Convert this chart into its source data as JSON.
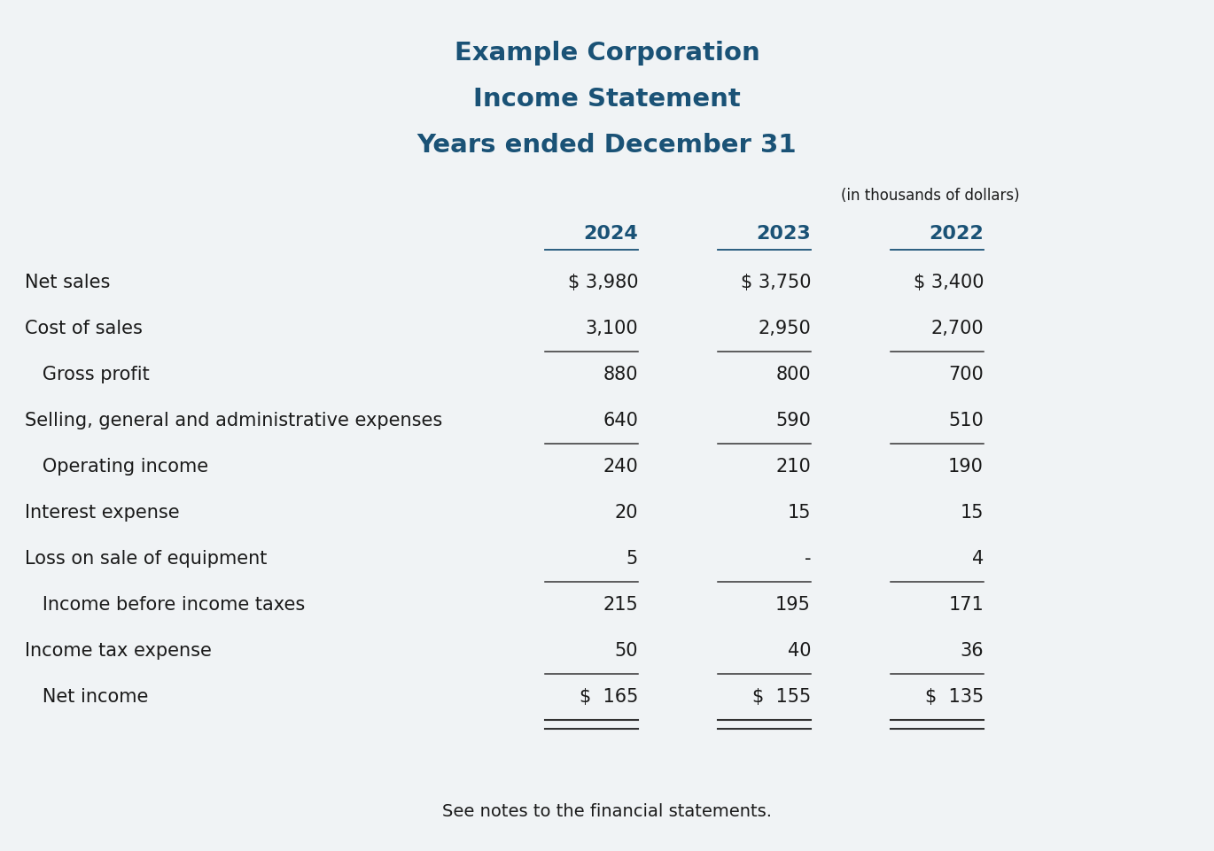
{
  "title_lines": [
    "Example Corporation",
    "Income Statement",
    "Years ended December 31"
  ],
  "title_color": "#1a5276",
  "subtitle_note": "(in thousands of dollars)",
  "years": [
    "2024",
    "2023",
    "2022"
  ],
  "rows": [
    {
      "label": "Net sales",
      "indent": 0,
      "values": [
        "$ 3,980",
        "$ 3,750",
        "$ 3,400"
      ],
      "ul_below": false,
      "dbl_ul": false
    },
    {
      "label": "Cost of sales",
      "indent": 0,
      "values": [
        "3,100",
        "2,950",
        "2,700"
      ],
      "ul_below": true,
      "dbl_ul": false
    },
    {
      "label": "   Gross profit",
      "indent": 1,
      "values": [
        "880",
        "800",
        "700"
      ],
      "ul_below": false,
      "dbl_ul": false
    },
    {
      "label": "Selling, general and administrative expenses",
      "indent": 0,
      "values": [
        "640",
        "590",
        "510"
      ],
      "ul_below": true,
      "dbl_ul": false
    },
    {
      "label": "   Operating income",
      "indent": 1,
      "values": [
        "240",
        "210",
        "190"
      ],
      "ul_below": false,
      "dbl_ul": false
    },
    {
      "label": "Interest expense",
      "indent": 0,
      "values": [
        "20",
        "15",
        "15"
      ],
      "ul_below": false,
      "dbl_ul": false
    },
    {
      "label": "Loss on sale of equipment",
      "indent": 0,
      "values": [
        "5",
        "-",
        "4"
      ],
      "ul_below": true,
      "dbl_ul": false
    },
    {
      "label": "   Income before income taxes",
      "indent": 1,
      "values": [
        "215",
        "195",
        "171"
      ],
      "ul_below": false,
      "dbl_ul": false
    },
    {
      "label": "Income tax expense",
      "indent": 0,
      "values": [
        "50",
        "40",
        "36"
      ],
      "ul_below": true,
      "dbl_ul": false
    },
    {
      "label": "   Net income",
      "indent": 1,
      "values": [
        "$  165",
        "$  155",
        "$  135"
      ],
      "ul_below": true,
      "dbl_ul": true
    }
  ],
  "footer": "See notes to the financial statements.",
  "bg_color": "#f0f3f5",
  "text_color": "#1a1a1a",
  "header_color": "#1a5276",
  "line_color": "#333333",
  "font_size_title": 21,
  "font_size_header": 16,
  "font_size_body": 15,
  "font_size_note": 12,
  "font_size_footer": 14
}
